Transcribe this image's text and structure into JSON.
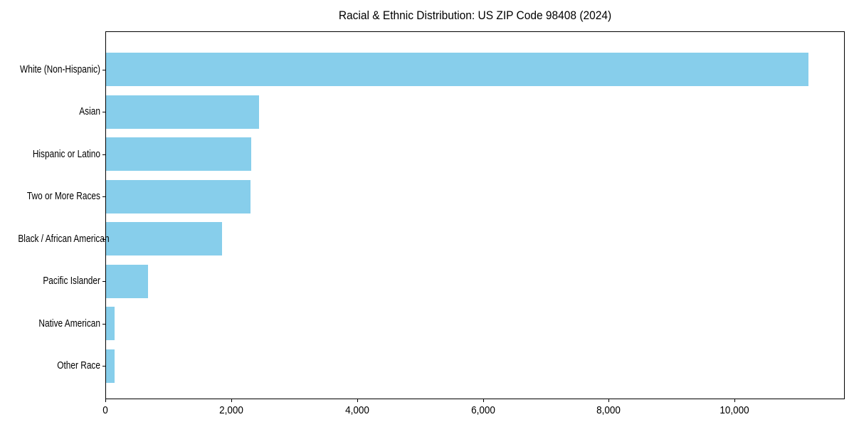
{
  "figure": {
    "background": "#ffffff",
    "bar_color": "#87CEEB",
    "spine_color": "#000000",
    "text_color": "#000000"
  },
  "chart_data": {
    "type": "bar",
    "orientation": "horizontal",
    "title": "Racial & Ethnic Distribution: US ZIP Code 98408 (2024)",
    "categories": [
      "White (Non-Hispanic)",
      "Asian",
      "Hispanic or Latino",
      "Two or More Races",
      "Black / African American",
      "Pacific Islander",
      "Native American",
      "Other Race"
    ],
    "values": [
      11160,
      2430,
      2310,
      2300,
      1840,
      670,
      135,
      140
    ],
    "xlabel": "",
    "ylabel": "",
    "xlim": [
      0,
      11750
    ],
    "x_ticks": [
      0,
      2000,
      4000,
      6000,
      8000,
      10000
    ],
    "x_tick_labels": [
      "0",
      "2,000",
      "4,000",
      "6,000",
      "8,000",
      "10,000"
    ],
    "grid": false,
    "legend": null
  }
}
